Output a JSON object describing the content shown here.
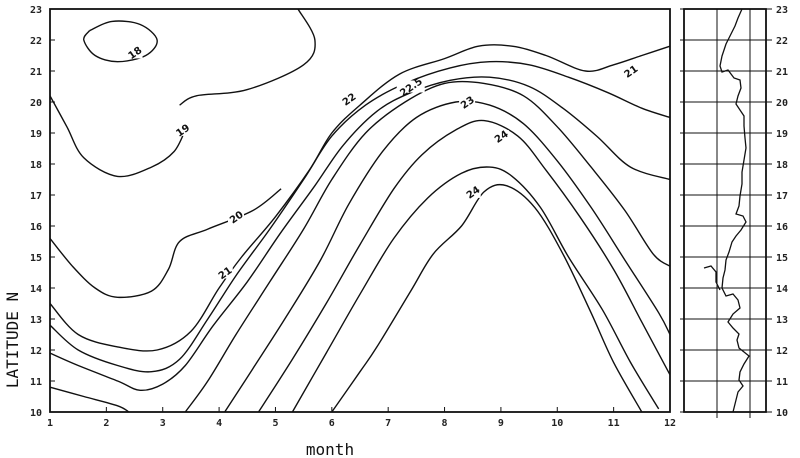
{
  "chart_data": {
    "type": "contour",
    "xlabel": "month",
    "ylabel": "LATITUDE N",
    "xlim": [
      1,
      12
    ],
    "ylim": [
      10,
      23
    ],
    "x_ticks": [
      "1",
      "2",
      "3",
      "4",
      "5",
      "6",
      "7",
      "8",
      "9",
      "10",
      "11",
      "12"
    ],
    "y_ticks": [
      "10",
      "11",
      "12",
      "13",
      "14",
      "15",
      "16",
      "17",
      "18",
      "19",
      "20",
      "21",
      "22",
      "23"
    ],
    "contours": [
      {
        "level": "18",
        "points": [
          [
            1.7,
            22.3
          ],
          [
            2.1,
            22.6
          ],
          [
            2.6,
            22.5
          ],
          [
            2.9,
            22.0
          ],
          [
            2.7,
            21.5
          ],
          [
            2.2,
            21.3
          ],
          [
            1.8,
            21.5
          ],
          [
            1.6,
            22.0
          ],
          [
            1.7,
            22.3
          ]
        ],
        "label_at": [
          2.5,
          21.6
        ]
      },
      {
        "level": "19",
        "points": [
          [
            1.0,
            20.2
          ],
          [
            1.3,
            19.2
          ],
          [
            1.6,
            18.2
          ],
          [
            2.2,
            17.6
          ],
          [
            2.8,
            17.9
          ],
          [
            3.2,
            18.4
          ],
          [
            3.4,
            19.1
          ]
        ],
        "label_at": [
          3.35,
          19.1
        ]
      },
      {
        "level": "19",
        "points": [
          [
            3.3,
            19.9
          ],
          [
            3.6,
            20.2
          ],
          [
            4.5,
            20.4
          ],
          [
            5.5,
            21.2
          ],
          [
            5.7,
            22.0
          ],
          [
            5.4,
            23.0
          ]
        ],
        "label_at": null
      },
      {
        "level": "20",
        "points": [
          [
            1.0,
            15.6
          ],
          [
            1.4,
            14.7
          ],
          [
            1.8,
            14.0
          ],
          [
            2.2,
            13.7
          ],
          [
            2.8,
            13.9
          ],
          [
            3.1,
            14.6
          ],
          [
            3.3,
            15.5
          ],
          [
            3.8,
            15.9
          ],
          [
            4.6,
            16.5
          ],
          [
            5.1,
            17.2
          ]
        ],
        "label_at": [
          4.3,
          16.3
        ]
      },
      {
        "level": "21",
        "points": [
          [
            1.0,
            13.5
          ],
          [
            1.5,
            12.5
          ],
          [
            2.2,
            12.1
          ],
          [
            2.9,
            12.0
          ],
          [
            3.5,
            12.6
          ],
          [
            4.0,
            14.0
          ],
          [
            4.4,
            15.0
          ],
          [
            5.0,
            16.3
          ],
          [
            5.6,
            17.8
          ],
          [
            6.0,
            19.0
          ],
          [
            6.5,
            19.9
          ],
          [
            7.2,
            20.9
          ],
          [
            8.0,
            21.4
          ],
          [
            8.6,
            21.8
          ],
          [
            9.2,
            21.8
          ],
          [
            9.8,
            21.5
          ],
          [
            10.5,
            21.0
          ],
          [
            11.0,
            21.2
          ],
          [
            11.5,
            21.5
          ],
          [
            12.0,
            21.8
          ]
        ],
        "label_at": [
          4.1,
          14.5
        ]
      },
      {
        "level": "",
        "points": [
          [
            1.0,
            12.8
          ],
          [
            1.5,
            12.0
          ],
          [
            2.2,
            11.5
          ],
          [
            2.8,
            11.3
          ],
          [
            3.3,
            11.7
          ],
          [
            3.8,
            13.0
          ],
          [
            4.3,
            14.4
          ],
          [
            4.9,
            15.9
          ],
          [
            5.5,
            17.5
          ],
          [
            6.0,
            18.9
          ],
          [
            6.6,
            19.9
          ],
          [
            7.3,
            20.6
          ],
          [
            8.1,
            21.1
          ],
          [
            8.8,
            21.3
          ],
          [
            9.5,
            21.2
          ],
          [
            10.2,
            20.8
          ],
          [
            10.9,
            20.3
          ],
          [
            11.5,
            19.8
          ],
          [
            12.0,
            19.5
          ]
        ],
        "label_at": null
      },
      {
        "level": "22",
        "points": [
          [
            1.0,
            11.9
          ],
          [
            1.5,
            11.5
          ],
          [
            2.2,
            11.0
          ],
          [
            2.6,
            10.7
          ],
          [
            3.0,
            10.9
          ],
          [
            3.4,
            11.5
          ],
          [
            3.9,
            12.8
          ],
          [
            4.5,
            14.2
          ],
          [
            5.1,
            15.8
          ],
          [
            5.7,
            17.3
          ],
          [
            6.2,
            18.6
          ],
          [
            6.8,
            19.7
          ],
          [
            7.4,
            20.3
          ],
          [
            8.1,
            20.7
          ],
          [
            8.8,
            20.8
          ],
          [
            9.5,
            20.5
          ],
          [
            10.1,
            19.8
          ],
          [
            10.7,
            18.9
          ],
          [
            11.3,
            17.9
          ],
          [
            12.0,
            17.5
          ]
        ],
        "label_at": [
          6.3,
          20.1
        ]
      },
      {
        "level": "",
        "points": [
          [
            1.0,
            10.8
          ],
          [
            1.6,
            10.5
          ],
          [
            2.2,
            10.2
          ],
          [
            2.4,
            10.0
          ]
        ],
        "label_at": null
      },
      {
        "level": "",
        "points": [
          [
            3.4,
            10.0
          ],
          [
            3.8,
            11.0
          ],
          [
            4.3,
            12.5
          ],
          [
            4.9,
            14.2
          ],
          [
            5.5,
            15.9
          ],
          [
            6.0,
            17.5
          ],
          [
            6.6,
            19.0
          ],
          [
            7.3,
            20.0
          ],
          [
            8.0,
            20.6
          ],
          [
            8.7,
            20.6
          ],
          [
            9.4,
            20.2
          ],
          [
            10.0,
            19.2
          ],
          [
            10.6,
            17.9
          ],
          [
            11.2,
            16.5
          ],
          [
            11.7,
            15.1
          ],
          [
            12.0,
            14.7
          ]
        ],
        "label_at": [
          7.4,
          20.5
        ]
      },
      {
        "level": "23",
        "points": [
          [
            4.1,
            10.0
          ],
          [
            4.6,
            11.4
          ],
          [
            5.2,
            13.1
          ],
          [
            5.8,
            14.9
          ],
          [
            6.3,
            16.7
          ],
          [
            6.9,
            18.4
          ],
          [
            7.5,
            19.5
          ],
          [
            8.2,
            20.0
          ],
          [
            8.8,
            19.9
          ],
          [
            9.4,
            19.3
          ],
          [
            10.0,
            18.1
          ],
          [
            10.6,
            16.6
          ],
          [
            11.2,
            14.9
          ],
          [
            11.8,
            13.2
          ],
          [
            12.0,
            12.5
          ]
        ],
        "label_at": [
          8.4,
          20.0
        ]
      },
      {
        "level": "",
        "points": [
          [
            4.7,
            10.0
          ],
          [
            5.3,
            11.7
          ],
          [
            5.9,
            13.5
          ],
          [
            6.5,
            15.4
          ],
          [
            7.1,
            17.2
          ],
          [
            7.6,
            18.3
          ],
          [
            8.2,
            19.1
          ],
          [
            8.7,
            19.4
          ],
          [
            9.3,
            18.9
          ],
          [
            9.8,
            17.8
          ],
          [
            10.4,
            16.3
          ],
          [
            11.0,
            14.6
          ],
          [
            11.5,
            12.9
          ],
          [
            12.0,
            11.2
          ]
        ],
        "label_at": null
      },
      {
        "level": "24",
        "points": [
          [
            5.3,
            10.0
          ],
          [
            5.9,
            11.9
          ],
          [
            6.5,
            13.8
          ],
          [
            7.1,
            15.6
          ],
          [
            7.7,
            16.9
          ],
          [
            8.3,
            17.7
          ],
          [
            8.8,
            17.9
          ],
          [
            9.2,
            17.6
          ],
          [
            9.7,
            16.6
          ],
          [
            10.2,
            15.0
          ],
          [
            10.8,
            13.3
          ],
          [
            11.3,
            11.6
          ],
          [
            11.8,
            10.1
          ]
        ],
        "label_at": [
          9.0,
          18.9
        ]
      },
      {
        "level": "",
        "points": [
          [
            6.0,
            10.0
          ],
          [
            6.5,
            11.3
          ],
          [
            6.8,
            12.1
          ],
          [
            7.4,
            13.9
          ],
          [
            7.8,
            15.1
          ],
          [
            8.3,
            16.0
          ],
          [
            8.7,
            17.1
          ],
          [
            9.1,
            17.3
          ],
          [
            9.6,
            16.6
          ],
          [
            10.1,
            15.1
          ],
          [
            10.6,
            13.2
          ],
          [
            11.0,
            11.6
          ],
          [
            11.5,
            10.0
          ]
        ],
        "label_at": [
          8.5,
          17.1
        ]
      }
    ],
    "contour_labels": [
      {
        "text": "18",
        "x": 2.5,
        "y": 21.6
      },
      {
        "text": "19",
        "x": 3.35,
        "y": 19.1
      },
      {
        "text": "20",
        "x": 4.3,
        "y": 16.3
      },
      {
        "text": "21",
        "x": 4.1,
        "y": 14.5
      },
      {
        "text": "21",
        "x": 11.3,
        "y": 21.0
      },
      {
        "text": "22",
        "x": 6.3,
        "y": 20.1
      },
      {
        "text": "22.5",
        "x": 7.4,
        "y": 20.5
      },
      {
        "text": "23",
        "x": 8.4,
        "y": 20.0
      },
      {
        "text": "24",
        "x": 9.0,
        "y": 18.9
      },
      {
        "text": "24",
        "x": 8.5,
        "y": 17.1
      }
    ],
    "grid": false,
    "legend": "none"
  },
  "inset_map": {
    "lat_ticks": [
      "23",
      "22",
      "21",
      "20",
      "19",
      "18",
      "17",
      "16",
      "15",
      "14",
      "13",
      "12",
      "11",
      "10"
    ]
  }
}
